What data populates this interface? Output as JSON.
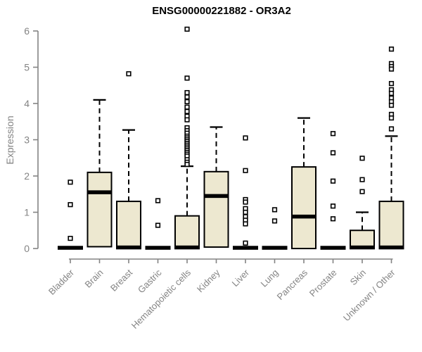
{
  "chart_data": {
    "type": "boxplot",
    "title": "ENSG00000221882 - OR3A2",
    "xlabel": "",
    "ylabel": "Expression",
    "ylim": [
      0,
      6
    ],
    "yticks": [
      0,
      1,
      2,
      3,
      4,
      5,
      6
    ],
    "grid": false,
    "legend": "none",
    "categories": [
      "Bladder",
      "Brain",
      "Breast",
      "Gastric",
      "Hematopoietic cells",
      "Kidney",
      "Liver",
      "Lung",
      "Pancreas",
      "Prostate",
      "Skin",
      "Unknown / Other"
    ],
    "boxes": [
      {
        "category": "Bladder",
        "q1": 0,
        "median": 0.02,
        "q3": 0,
        "high": 0,
        "outliers": [
          1.83,
          1.21,
          0.28
        ]
      },
      {
        "category": "Brain",
        "q1": 0.05,
        "median": 1.55,
        "q3": 2.1,
        "high": 4.1,
        "outliers": []
      },
      {
        "category": "Breast",
        "q1": 0,
        "median": 0.03,
        "q3": 1.3,
        "high": 3.27,
        "outliers": [
          4.82
        ]
      },
      {
        "category": "Gastric",
        "q1": 0,
        "median": 0.02,
        "q3": 0,
        "high": 0,
        "outliers": [
          1.32,
          0.64
        ]
      },
      {
        "category": "Hematopoietic cells",
        "q1": 0,
        "median": 0.03,
        "q3": 0.9,
        "high": 2.27,
        "outliers": [
          6.05,
          4.7,
          4.3,
          4.18,
          4.05,
          3.9,
          3.78,
          3.65,
          3.55,
          3.33,
          3.25,
          3.18,
          3.1,
          3.05,
          3.0,
          2.95,
          2.9,
          2.85,
          2.8,
          2.75,
          2.7,
          2.65,
          2.6,
          2.55,
          2.45,
          2.38,
          2.32
        ]
      },
      {
        "category": "Kidney",
        "q1": 0.04,
        "median": 1.45,
        "q3": 2.12,
        "high": 3.35,
        "outliers": []
      },
      {
        "category": "Liver",
        "q1": 0,
        "median": 0.02,
        "q3": 0,
        "high": 0,
        "outliers": [
          3.05,
          2.15,
          1.35,
          1.28,
          1.1,
          1.0,
          0.88,
          0.78,
          0.68,
          0.15
        ]
      },
      {
        "category": "Lung",
        "q1": 0,
        "median": 0.02,
        "q3": 0,
        "high": 0,
        "outliers": [
          1.07,
          0.76
        ]
      },
      {
        "category": "Pancreas",
        "q1": 0,
        "median": 0.88,
        "q3": 2.25,
        "high": 3.6,
        "outliers": []
      },
      {
        "category": "Prostate",
        "q1": 0,
        "median": 0.02,
        "q3": 0,
        "high": 0,
        "outliers": [
          3.17,
          2.64,
          1.86,
          1.17,
          0.82
        ]
      },
      {
        "category": "Skin",
        "q1": 0,
        "median": 0.03,
        "q3": 0.5,
        "high": 1.0,
        "outliers": [
          2.49,
          1.9,
          1.57
        ]
      },
      {
        "category": "Unknown / Other",
        "q1": 0,
        "median": 0.03,
        "q3": 1.3,
        "high": 3.1,
        "outliers": [
          5.5,
          5.1,
          5.02,
          4.95,
          4.55,
          4.38,
          4.28,
          4.15,
          4.05,
          3.95,
          3.7,
          3.6,
          3.3
        ]
      }
    ],
    "colors": {
      "box_fill": "#ede8d0",
      "box_border": "#000000",
      "median": "#000000",
      "whisker": "#000000",
      "outlier": "#000000",
      "axis": "#848484",
      "tick_label": "#848484",
      "title": "#000000",
      "background": "#ffffff"
    }
  }
}
